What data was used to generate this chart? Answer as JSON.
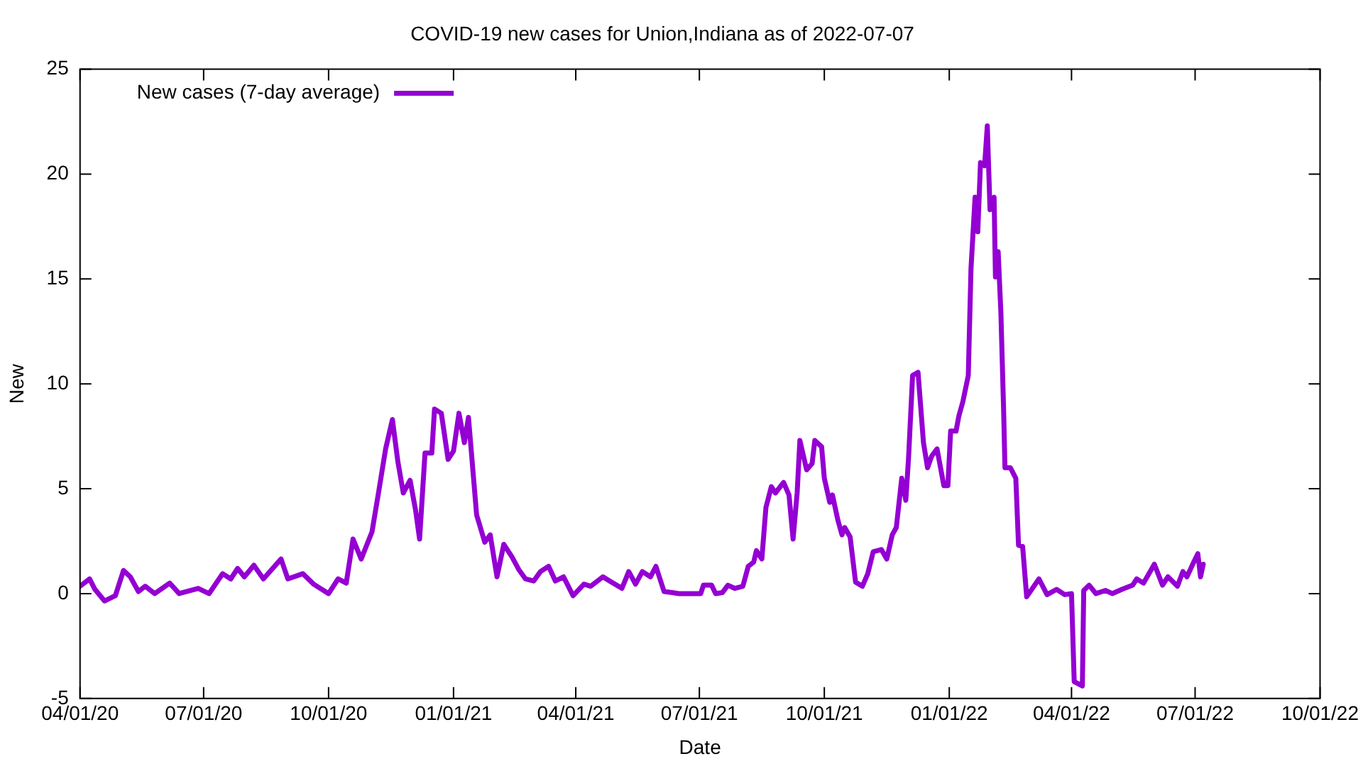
{
  "chart_data": {
    "type": "line",
    "title": "COVID-19 new cases for Union,Indiana as of 2022-07-07",
    "xlabel": "Date",
    "ylabel": "New",
    "series": [
      {
        "name": "New cases (7-day average)",
        "color": "#9400d3",
        "x": [
          "2020-04-01",
          "2020-04-08",
          "2020-04-12",
          "2020-04-19",
          "2020-04-27",
          "2020-05-03",
          "2020-05-08",
          "2020-05-14",
          "2020-05-19",
          "2020-05-26",
          "2020-06-06",
          "2020-06-13",
          "2020-06-27",
          "2020-07-05",
          "2020-07-15",
          "2020-07-21",
          "2020-07-26",
          "2020-07-31",
          "2020-08-07",
          "2020-08-14",
          "2020-08-27",
          "2020-09-01",
          "2020-09-12",
          "2020-09-20",
          "2020-10-01",
          "2020-10-08",
          "2020-10-14",
          "2020-10-19",
          "2020-10-25",
          "2020-11-02",
          "2020-11-07",
          "2020-11-12",
          "2020-11-17",
          "2020-11-21",
          "2020-11-25",
          "2020-11-30",
          "2020-12-04",
          "2020-12-07",
          "2020-12-11",
          "2020-12-16",
          "2020-12-18",
          "2020-12-23",
          "2020-12-28",
          "2021-01-01",
          "2021-01-05",
          "2021-01-09",
          "2021-01-12",
          "2021-01-18",
          "2021-01-24",
          "2021-01-28",
          "2021-02-02",
          "2021-02-07",
          "2021-02-13",
          "2021-02-18",
          "2021-02-23",
          "2021-03-01",
          "2021-03-06",
          "2021-03-12",
          "2021-03-17",
          "2021-03-23",
          "2021-03-30",
          "2021-04-07",
          "2021-04-12",
          "2021-04-21",
          "2021-04-26",
          "2021-05-05",
          "2021-05-10",
          "2021-05-15",
          "2021-05-20",
          "2021-05-26",
          "2021-05-30",
          "2021-06-05",
          "2021-06-11",
          "2021-06-16",
          "2021-07-02",
          "2021-07-04",
          "2021-07-10",
          "2021-07-13",
          "2021-07-18",
          "2021-07-22",
          "2021-07-27",
          "2021-08-02",
          "2021-08-06",
          "2021-08-10",
          "2021-08-12",
          "2021-08-16",
          "2021-08-19",
          "2021-08-23",
          "2021-08-26",
          "2021-09-01",
          "2021-09-05",
          "2021-09-08",
          "2021-09-11",
          "2021-09-13",
          "2021-09-18",
          "2021-09-22",
          "2021-09-24",
          "2021-09-29",
          "2021-10-01",
          "2021-10-05",
          "2021-10-07",
          "2021-10-11",
          "2021-10-14",
          "2021-10-16",
          "2021-10-20",
          "2021-10-24",
          "2021-10-29",
          "2021-11-02",
          "2021-11-06",
          "2021-11-12",
          "2021-11-16",
          "2021-11-20",
          "2021-11-23",
          "2021-11-27",
          "2021-11-30",
          "2021-12-02",
          "2021-12-05",
          "2021-12-09",
          "2021-12-13",
          "2021-12-16",
          "2021-12-19",
          "2021-12-23",
          "2021-12-28",
          "2021-12-31",
          "2022-01-02",
          "2022-01-06",
          "2022-01-08",
          "2022-01-11",
          "2022-01-15",
          "2022-01-17",
          "2022-01-20",
          "2022-01-22",
          "2022-01-24",
          "2022-01-27",
          "2022-01-29",
          "2022-01-31",
          "2022-02-03",
          "2022-02-04",
          "2022-02-06",
          "2022-02-08",
          "2022-02-10",
          "2022-02-11",
          "2022-02-15",
          "2022-02-19",
          "2022-02-21",
          "2022-02-24",
          "2022-02-27",
          "2022-03-08",
          "2022-03-14",
          "2022-03-21",
          "2022-03-27",
          "2022-04-01",
          "2022-04-03",
          "2022-04-09",
          "2022-04-10",
          "2022-04-14",
          "2022-04-19",
          "2022-04-26",
          "2022-05-01",
          "2022-05-08",
          "2022-05-16",
          "2022-05-19",
          "2022-05-24",
          "2022-06-01",
          "2022-06-07",
          "2022-06-11",
          "2022-06-18",
          "2022-06-22",
          "2022-06-25",
          "2022-06-30",
          "2022-07-03",
          "2022-07-05",
          "2022-07-07"
        ],
        "values": [
          0.35,
          0.7,
          0.2,
          -0.35,
          -0.1,
          1.1,
          0.8,
          0.1,
          0.35,
          0,
          0.5,
          0,
          0.25,
          0,
          0.95,
          0.7,
          1.2,
          0.8,
          1.35,
          0.7,
          1.65,
          0.7,
          0.95,
          0.45,
          0,
          0.7,
          0.5,
          2.6,
          1.65,
          2.95,
          4.9,
          6.9,
          8.3,
          6.3,
          4.8,
          5.4,
          4.0,
          2.6,
          6.7,
          6.7,
          8.8,
          8.6,
          6.4,
          6.8,
          8.6,
          7.2,
          8.4,
          3.75,
          2.45,
          2.8,
          0.8,
          2.35,
          1.75,
          1.15,
          0.7,
          0.6,
          1.05,
          1.3,
          0.6,
          0.8,
          -0.1,
          0.45,
          0.35,
          0.8,
          0.6,
          0.25,
          1.05,
          0.45,
          1.05,
          0.8,
          1.3,
          0.1,
          0.05,
          0,
          0,
          0.4,
          0.4,
          0,
          0.05,
          0.4,
          0.25,
          0.35,
          1.3,
          1.5,
          2.05,
          1.65,
          4.1,
          5.1,
          4.8,
          5.3,
          4.7,
          2.6,
          4.8,
          7.3,
          5.9,
          6.2,
          7.3,
          7.0,
          5.5,
          4.35,
          4.7,
          3.5,
          2.8,
          3.15,
          2.7,
          0.55,
          0.35,
          0.95,
          2.0,
          2.1,
          1.65,
          2.8,
          3.15,
          5.5,
          4.45,
          6.45,
          10.4,
          10.55,
          7.2,
          6.0,
          6.55,
          6.9,
          5.15,
          5.15,
          7.75,
          7.75,
          8.45,
          9.15,
          10.4,
          15.5,
          18.9,
          17.25,
          20.55,
          20.4,
          22.3,
          18.3,
          18.9,
          15.1,
          16.3,
          13.4,
          8.8,
          6.0,
          6.0,
          5.5,
          2.3,
          2.25,
          -0.15,
          0.7,
          -0.05,
          0.2,
          -0.05,
          0,
          -4.2,
          -4.4,
          0.15,
          0.4,
          0,
          0.15,
          0,
          0.2,
          0.4,
          0.7,
          0.5,
          1.4,
          0.4,
          0.8,
          0.35,
          1.05,
          0.8,
          1.5,
          1.9,
          0.8,
          1.4
        ]
      }
    ],
    "xlim": [
      "2020-04-01",
      "2022-10-01"
    ],
    "xticks": [
      {
        "value": "2020-04-01",
        "label": "04/01/20"
      },
      {
        "value": "2020-07-01",
        "label": "07/01/20"
      },
      {
        "value": "2020-10-01",
        "label": "10/01/20"
      },
      {
        "value": "2021-01-01",
        "label": "01/01/21"
      },
      {
        "value": "2021-04-01",
        "label": "04/01/21"
      },
      {
        "value": "2021-07-01",
        "label": "07/01/21"
      },
      {
        "value": "2021-10-01",
        "label": "10/01/21"
      },
      {
        "value": "2022-01-01",
        "label": "01/01/22"
      },
      {
        "value": "2022-04-01",
        "label": "04/01/22"
      },
      {
        "value": "2022-07-01",
        "label": "07/01/22"
      },
      {
        "value": "2022-10-01",
        "label": "10/01/22"
      }
    ],
    "ylim": [
      -5,
      25
    ],
    "yticks": [
      -5,
      0,
      5,
      10,
      15,
      20,
      25
    ],
    "grid": false,
    "legend": "top left",
    "marker": "none",
    "line_style": "solid"
  }
}
